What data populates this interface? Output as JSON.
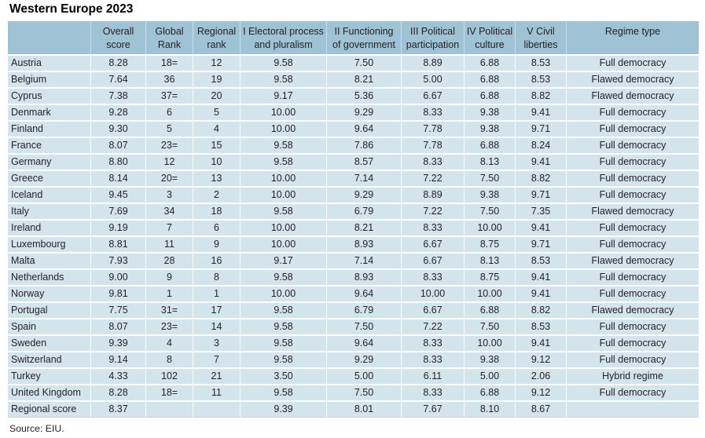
{
  "title": "Western Europe 2023",
  "source": "Source: EIU.",
  "colors": {
    "header_bg": "#9fc2d5",
    "row_bg": "#d4e4ed",
    "text": "#231f20",
    "table_bottom_border": "#c6d5df",
    "page_bg": "#ffffff"
  },
  "table": {
    "columns": [
      {
        "key": "country",
        "label": ""
      },
      {
        "key": "overall_score",
        "label": "Overall\nscore"
      },
      {
        "key": "global_rank",
        "label": "Global\nRank"
      },
      {
        "key": "regional_rank",
        "label": "Regional\nrank"
      },
      {
        "key": "electoral_process",
        "label": "I Electoral process\nand pluralism"
      },
      {
        "key": "functioning_of_government",
        "label": "II Functioning\nof government"
      },
      {
        "key": "political_participation",
        "label": "III Political\nparticipation"
      },
      {
        "key": "political_culture",
        "label": "IV Political\nculture"
      },
      {
        "key": "civil_liberties",
        "label": "V Civil\nliberties"
      },
      {
        "key": "regime_type",
        "label": "Regime type"
      }
    ],
    "rows": [
      [
        "Austria",
        "8.28",
        "18=",
        "12",
        "9.58",
        "7.50",
        "8.89",
        "6.88",
        "8.53",
        "Full democracy"
      ],
      [
        "Belgium",
        "7.64",
        "36",
        "19",
        "9.58",
        "8.21",
        "5.00",
        "6.88",
        "8.53",
        "Flawed democracy"
      ],
      [
        "Cyprus",
        "7.38",
        "37=",
        "20",
        "9.17",
        "5.36",
        "6.67",
        "6.88",
        "8.82",
        "Flawed democracy"
      ],
      [
        "Denmark",
        "9.28",
        "6",
        "5",
        "10.00",
        "9.29",
        "8.33",
        "9.38",
        "9.41",
        "Full democracy"
      ],
      [
        "Finland",
        "9.30",
        "5",
        "4",
        "10.00",
        "9.64",
        "7.78",
        "9.38",
        "9.71",
        "Full democracy"
      ],
      [
        "France",
        "8.07",
        "23=",
        "15",
        "9.58",
        "7.86",
        "7.78",
        "6.88",
        "8.24",
        "Full democracy"
      ],
      [
        "Germany",
        "8.80",
        "12",
        "10",
        "9.58",
        "8.57",
        "8.33",
        "8.13",
        "9.41",
        "Full democracy"
      ],
      [
        "Greece",
        "8.14",
        "20=",
        "13",
        "10.00",
        "7.14",
        "7.22",
        "7.50",
        "8.82",
        "Full democracy"
      ],
      [
        "Iceland",
        "9.45",
        "3",
        "2",
        "10.00",
        "9.29",
        "8.89",
        "9.38",
        "9.71",
        "Full democracy"
      ],
      [
        "Italy",
        "7.69",
        "34",
        "18",
        "9.58",
        "6.79",
        "7.22",
        "7.50",
        "7.35",
        "Flawed democracy"
      ],
      [
        "Ireland",
        "9.19",
        "7",
        "6",
        "10.00",
        "8.21",
        "8.33",
        "10.00",
        "9.41",
        "Full democracy"
      ],
      [
        "Luxembourg",
        "8.81",
        "11",
        "9",
        "10.00",
        "8.93",
        "6.67",
        "8.75",
        "9.71",
        "Full democracy"
      ],
      [
        "Malta",
        "7.93",
        "28",
        "16",
        "9.17",
        "7.14",
        "6.67",
        "8.13",
        "8.53",
        "Flawed democracy"
      ],
      [
        "Netherlands",
        "9.00",
        "9",
        "8",
        "9.58",
        "8.93",
        "8.33",
        "8.75",
        "9.41",
        "Full democracy"
      ],
      [
        "Norway",
        "9.81",
        "1",
        "1",
        "10.00",
        "9.64",
        "10.00",
        "10.00",
        "9.41",
        "Full democracy"
      ],
      [
        "Portugal",
        "7.75",
        "31=",
        "17",
        "9.58",
        "6.79",
        "6.67",
        "6.88",
        "8.82",
        "Flawed democracy"
      ],
      [
        "Spain",
        "8.07",
        "23=",
        "14",
        "9.58",
        "7.50",
        "7.22",
        "7.50",
        "8.53",
        "Full democracy"
      ],
      [
        "Sweden",
        "9.39",
        "4",
        "3",
        "9.58",
        "9.64",
        "8.33",
        "10.00",
        "9.41",
        "Full democracy"
      ],
      [
        "Switzerland",
        "9.14",
        "8",
        "7",
        "9.58",
        "9.29",
        "8.33",
        "9.38",
        "9.12",
        "Full democracy"
      ],
      [
        "Turkey",
        "4.33",
        "102",
        "21",
        "3.50",
        "5.00",
        "6.11",
        "5.00",
        "2.06",
        "Hybrid regime"
      ],
      [
        "United Kingdom",
        "8.28",
        "18=",
        "11",
        "9.58",
        "7.50",
        "8.33",
        "6.88",
        "9.12",
        "Full democracy"
      ],
      [
        "Regional score",
        "8.37",
        "",
        "",
        "9.39",
        "8.01",
        "7.67",
        "8.10",
        "8.67",
        ""
      ]
    ]
  }
}
